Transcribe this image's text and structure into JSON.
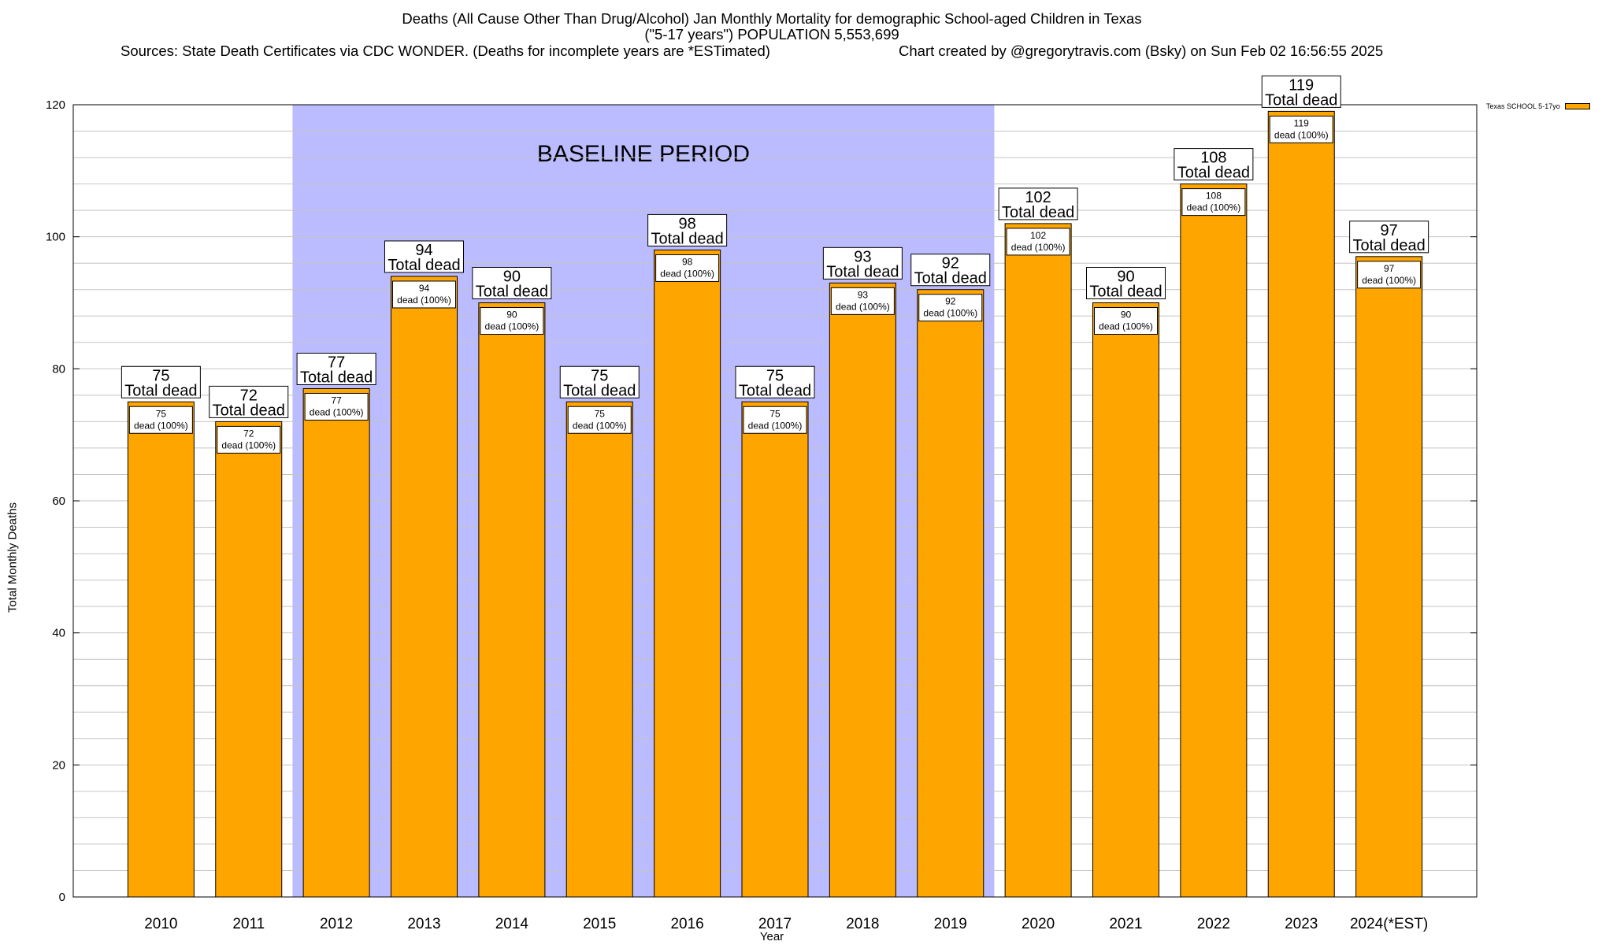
{
  "header": {
    "title_line1": "Deaths (All Cause Other Than Drug/Alcohol) Jan Monthly Mortality for demographic School-aged Children in Texas",
    "title_line2": "(\"5-17 years\") POPULATION 5,553,699",
    "sources": "Sources: State Death Certificates via CDC WONDER. (Deaths for incomplete years are *ESTimated)",
    "credit": "Chart created by @gregorytravis.com (Bsky) on Sun Feb 02 16:56:55 2025"
  },
  "chart_data": {
    "type": "bar",
    "categories": [
      "2010",
      "2011",
      "2012",
      "2013",
      "2014",
      "2015",
      "2016",
      "2017",
      "2018",
      "2019",
      "2020",
      "2021",
      "2022",
      "2023",
      "2024(*EST)"
    ],
    "series": [
      {
        "name": "Texas SCHOOL 5-17yo",
        "values": [
          75,
          72,
          77,
          94,
          90,
          75,
          98,
          75,
          93,
          92,
          102,
          90,
          108,
          119,
          97
        ]
      }
    ],
    "xlabel": "Year",
    "ylabel": "Total Monthly Deaths",
    "ylim": [
      0,
      120
    ],
    "yticks": [
      0,
      20,
      40,
      60,
      80,
      100,
      120
    ],
    "grid": true,
    "legend_position": "top-right",
    "total_label": "Total dead",
    "inner_label": "dead (100%)",
    "baseline": {
      "label": "BASELINE PERIOD",
      "start": "2012",
      "end": "2019",
      "color": "#bbbbff"
    },
    "bar_color": "#ffa500"
  }
}
